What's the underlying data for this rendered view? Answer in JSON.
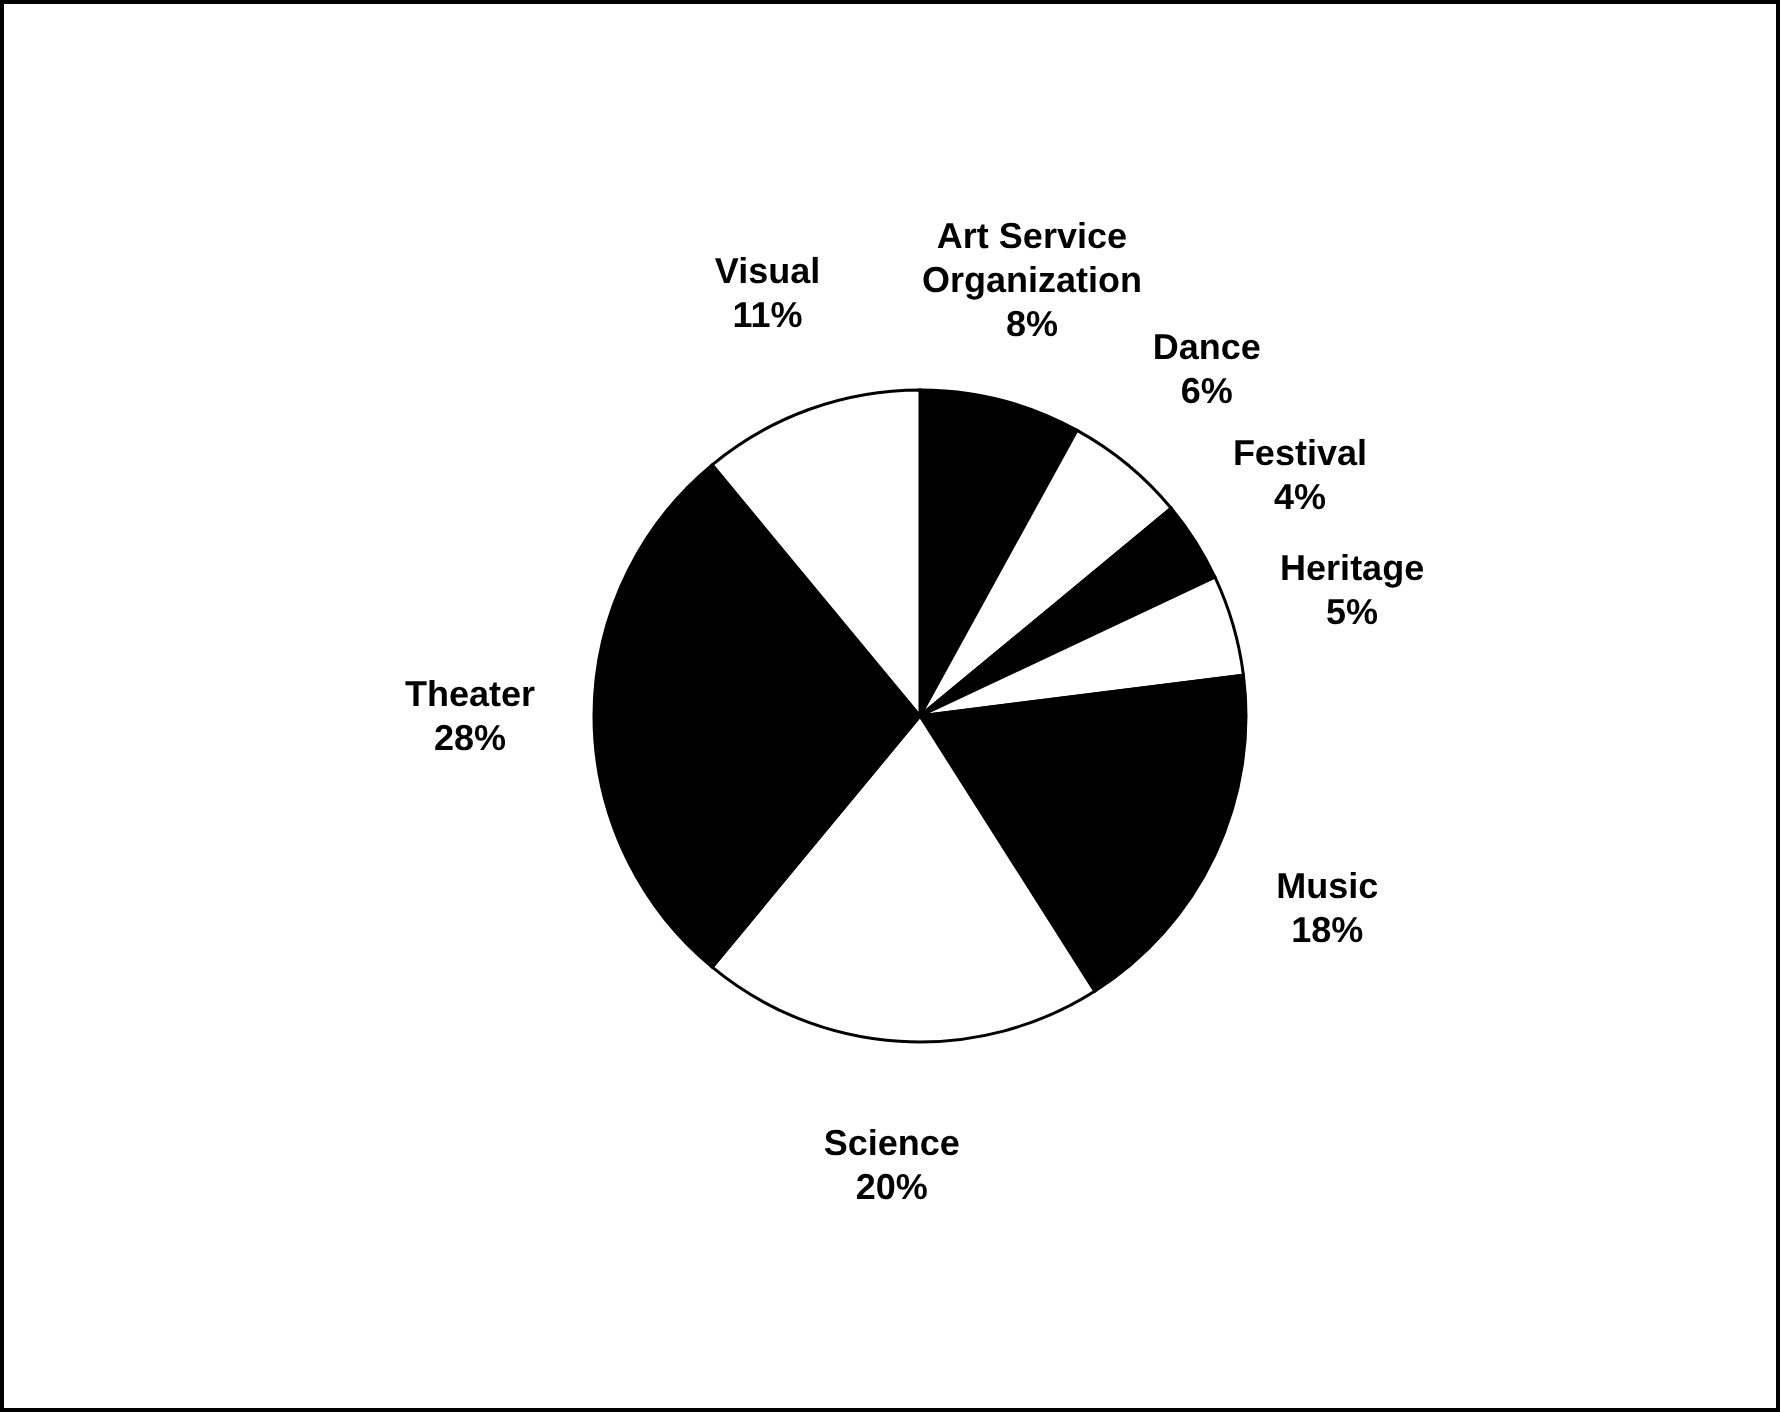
{
  "chart_data": {
    "type": "pie",
    "categories": [
      "Art Service Organization",
      "Dance",
      "Festival",
      "Heritage",
      "Music",
      "Science",
      "Theater",
      "Visual"
    ],
    "values": [
      8,
      6,
      4,
      5,
      18,
      20,
      28,
      11
    ],
    "value_labels": [
      "8%",
      "6%",
      "4%",
      "5%",
      "18%",
      "20%",
      "28%",
      "11%"
    ],
    "colors": [
      "#000000",
      "#ffffff",
      "#000000",
      "#ffffff",
      "#000000",
      "#ffffff",
      "#000000",
      "#ffffff"
    ],
    "legend": false
  }
}
